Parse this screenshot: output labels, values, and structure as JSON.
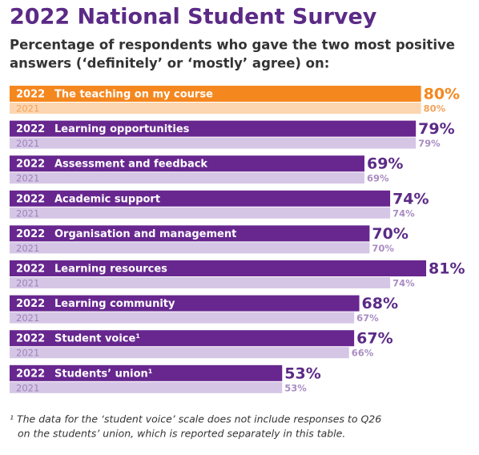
{
  "chart_data": {
    "type": "bar",
    "orientation": "horizontal",
    "title": "2022 National Student Survey",
    "subtitle": [
      "Percentage of respondents who gave the two most positive",
      "answers (‘definitely’ or ‘mostly’ agree) on:"
    ],
    "categories": [
      "The teaching on my course",
      "Learning opportunities",
      "Assessment and feedback",
      "Academic support",
      "Organisation and management",
      "Learning resources",
      "Learning community",
      "Student voice¹",
      "Students’ union¹"
    ],
    "series": [
      {
        "name": "2022",
        "color": "#67278f",
        "colors": [
          "#f5871f",
          "#67278f",
          "#67278f",
          "#67278f",
          "#67278f",
          "#67278f",
          "#67278f",
          "#67278f",
          "#67278f"
        ],
        "values": [
          80,
          79,
          69,
          74,
          70,
          81,
          68,
          67,
          53
        ],
        "value_labels": [
          "80%",
          "79%",
          "69%",
          "74%",
          "70%",
          "81%",
          "68%",
          "67%",
          "53%"
        ]
      },
      {
        "name": "2021",
        "color": "#d6c6e6",
        "colors": [
          "#fcd6b0",
          "#d6c6e6",
          "#d6c6e6",
          "#d6c6e6",
          "#d6c6e6",
          "#d6c6e6",
          "#d6c6e6",
          "#d6c6e6",
          "#d6c6e6"
        ],
        "values": [
          80,
          79,
          69,
          74,
          70,
          74,
          67,
          66,
          53
        ],
        "value_labels": [
          "80%",
          "79%",
          "69%",
          "74%",
          "70%",
          "74%",
          "67%",
          "66%",
          "53%"
        ]
      }
    ],
    "footnote": [
      "¹ The data for the ‘student voice’ scale does not include responses to Q26",
      "on the students’ union, which is reported separately in this table."
    ]
  }
}
